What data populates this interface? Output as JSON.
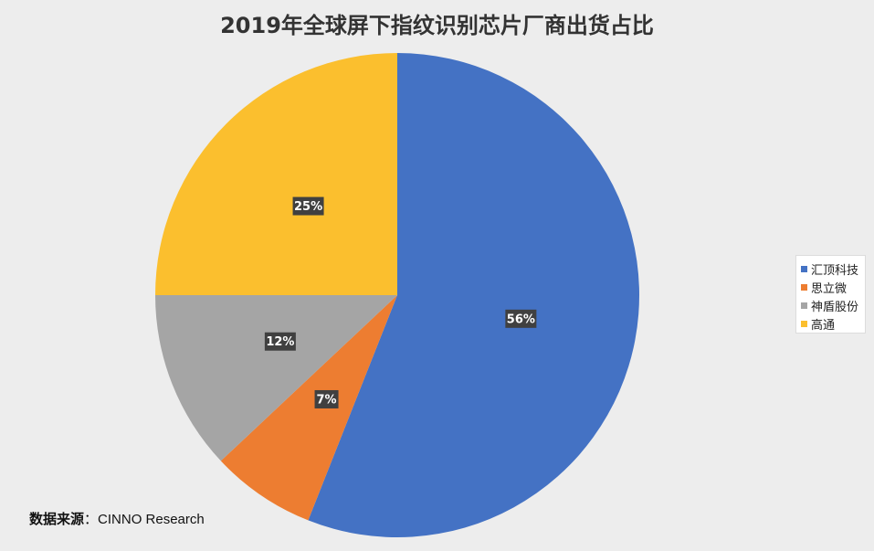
{
  "title": "2019年全球屏下指纹识别芯片厂商出货占比",
  "source": {
    "label": "数据来源",
    "separator": "：",
    "value": "CINNO Research"
  },
  "chart_data": {
    "type": "pie",
    "title": "2019年全球屏下指纹识别芯片厂商出货占比",
    "categories": [
      "汇顶科技",
      "思立微",
      "神盾股份",
      "高通"
    ],
    "values": [
      56,
      7,
      12,
      25
    ],
    "labels": [
      "56%",
      "7%",
      "12%",
      "25%"
    ],
    "unit": "%",
    "colors": [
      "#4472c4",
      "#ed7d31",
      "#a5a5a5",
      "#fbbf2e"
    ],
    "start": "12 o'clock",
    "direction": "clockwise",
    "legend_position": "right"
  },
  "legend": [
    {
      "label": "汇顶科技",
      "color": "#4472c4"
    },
    {
      "label": "思立微",
      "color": "#ed7d31"
    },
    {
      "label": "神盾股份",
      "color": "#a5a5a5"
    },
    {
      "label": "高通",
      "color": "#fbbf2e"
    }
  ]
}
